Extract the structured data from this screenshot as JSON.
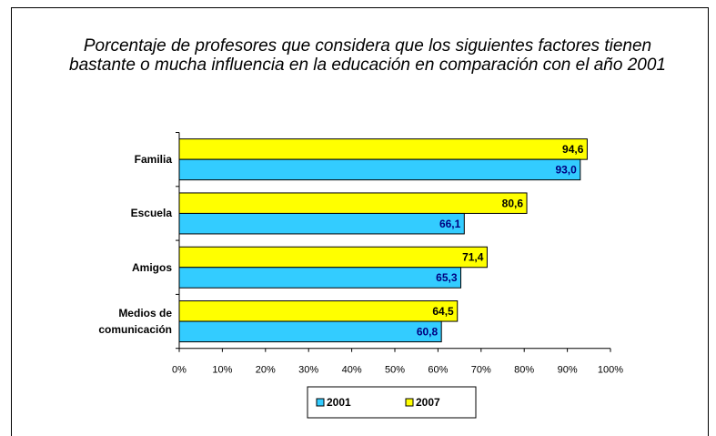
{
  "chart_data": {
    "type": "bar",
    "orientation": "horizontal",
    "title": "Porcentaje de profesores que considera que los siguientes factores tienen bastante o mucha influencia en la educación en comparación con el año 2001",
    "categories": [
      "Familia",
      "Escuela",
      "Amigos",
      "Medios de comunicación"
    ],
    "series": [
      {
        "name": "2007",
        "color": "#ffff00",
        "label_color": "#000000",
        "values": [
          94.6,
          80.6,
          71.4,
          64.5
        ],
        "value_labels": [
          "94,6",
          "80,6",
          "71,4",
          "64,5"
        ]
      },
      {
        "name": "2001",
        "color": "#33ccff",
        "label_color": "#000080",
        "values": [
          93.0,
          66.1,
          65.3,
          60.8
        ],
        "value_labels": [
          "93,0",
          "66,1",
          "65,3",
          "60,8"
        ]
      }
    ],
    "xlim": [
      0,
      100
    ],
    "xticks": [
      {
        "value": 0,
        "label": "0%"
      },
      {
        "value": 10,
        "label": "10%"
      },
      {
        "value": 20,
        "label": "20%"
      },
      {
        "value": 30,
        "label": "30%"
      },
      {
        "value": 40,
        "label": "40%"
      },
      {
        "value": 50,
        "label": "50%"
      },
      {
        "value": 60,
        "label": "60%"
      },
      {
        "value": 70,
        "label": "70%"
      },
      {
        "value": 80,
        "label": "80%"
      },
      {
        "value": 90,
        "label": "90%"
      },
      {
        "value": 100,
        "label": "100%"
      }
    ],
    "legend": "bottom"
  }
}
